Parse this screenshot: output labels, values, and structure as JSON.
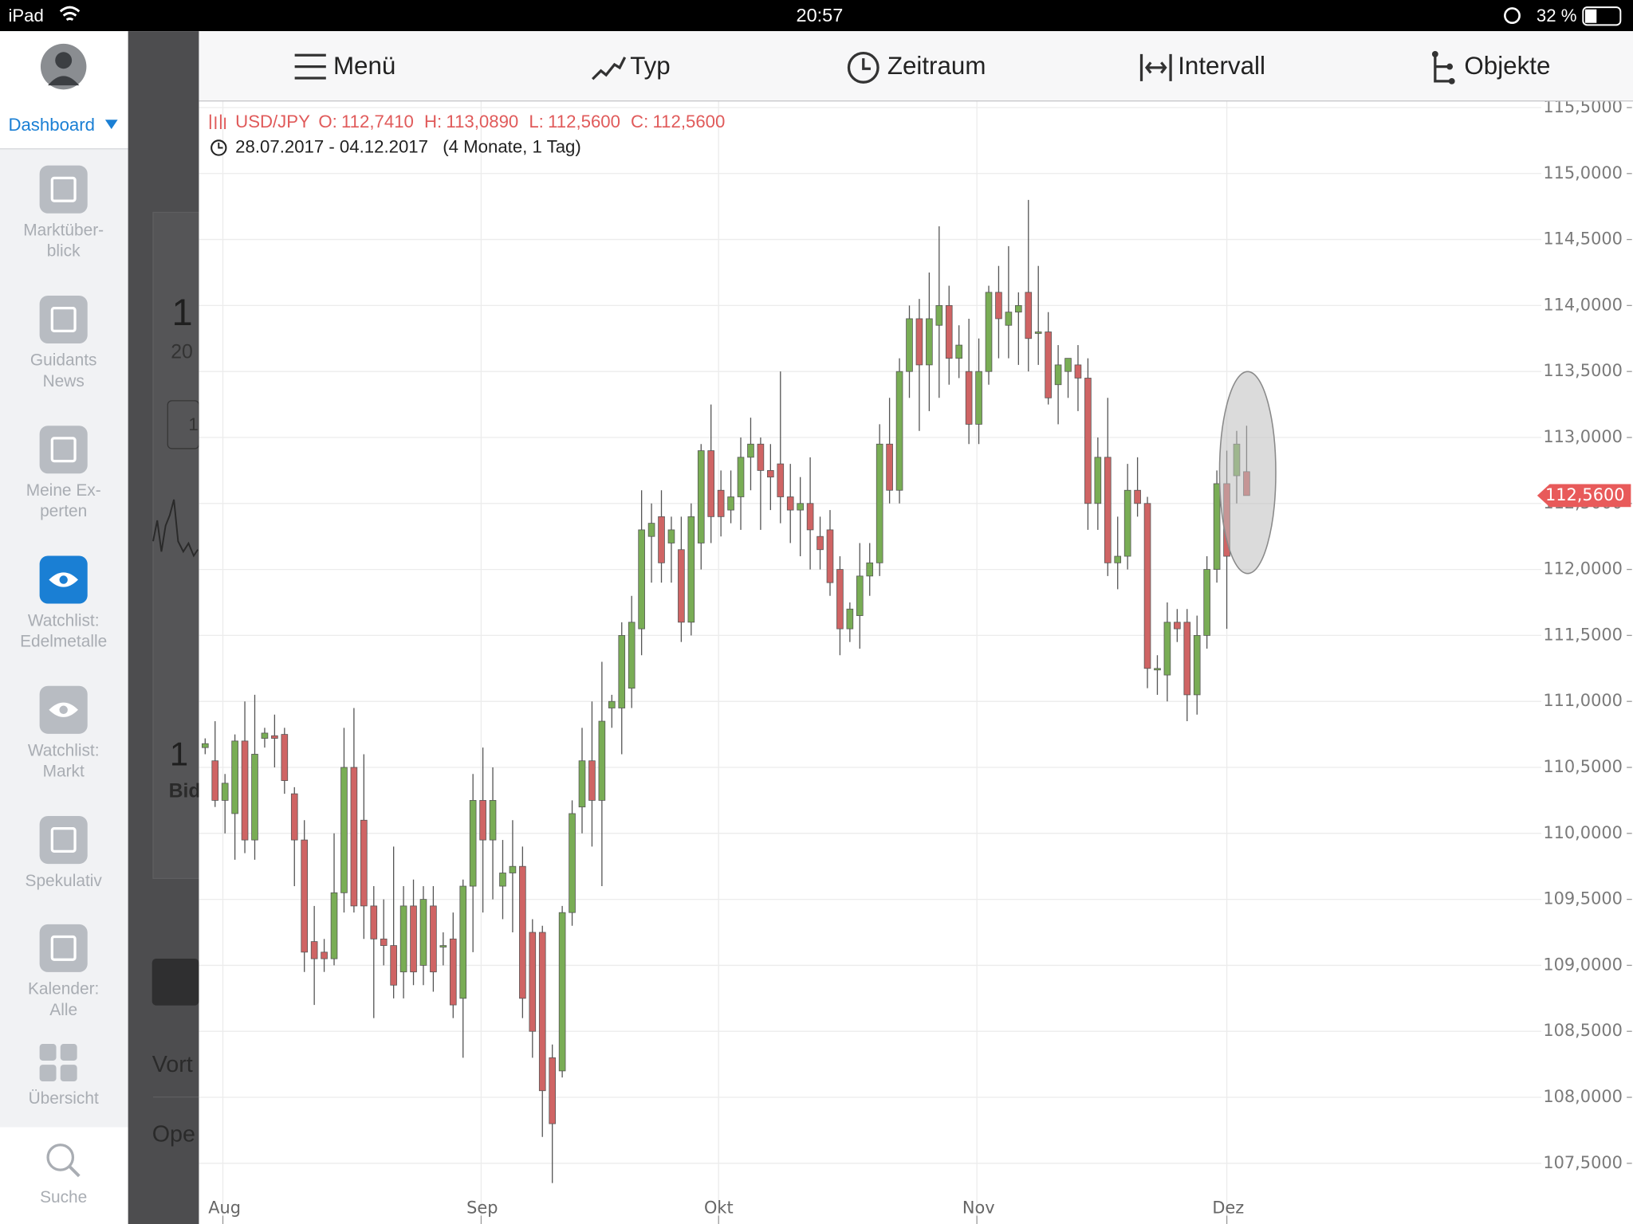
{
  "status_bar": {
    "device": "iPad",
    "time": "20:57",
    "battery": "32 %"
  },
  "sidebar": {
    "dashboard": "Dashboard",
    "items": [
      {
        "lines": [
          "Marktüber-",
          "blick"
        ]
      },
      {
        "lines": [
          "Guidants",
          "News"
        ]
      },
      {
        "lines": [
          "Meine Ex-",
          "perten"
        ]
      },
      {
        "lines": [
          "Watchlist:",
          "Edelmetalle"
        ],
        "active": true
      },
      {
        "lines": [
          "Watchlist:",
          "Markt"
        ]
      },
      {
        "lines": [
          "Spekulativ"
        ]
      },
      {
        "lines": [
          "Kalender:",
          "Alle"
        ]
      },
      {
        "lines": [
          "Übersicht"
        ]
      }
    ],
    "search": "Suche"
  },
  "background_panel": {
    "texts": [
      "1",
      "20",
      "1",
      "1",
      "Bid",
      "Vort",
      "Ope"
    ]
  },
  "toolbar": {
    "items": [
      "Menü",
      "Typ",
      "Zeitraum",
      "Intervall",
      "Objekte"
    ]
  },
  "chart": {
    "type": "candlestick",
    "symbol": "USD/JPY",
    "ohlc": [
      {
        "key": "O:",
        "value": "112,7410"
      },
      {
        "key": "H:",
        "value": "113,0890"
      },
      {
        "key": "L:",
        "value": "112,5600"
      },
      {
        "key": "C:",
        "value": "112,5600"
      }
    ],
    "date_range": "28.07.2017 - 04.12.2017",
    "duration": "(4 Monate, 1 Tag)",
    "ylim": [
      107.04,
      115.55
    ],
    "yticks": [
      {
        "value": 107.5,
        "label": "107,5000"
      },
      {
        "value": 108,
        "label": "108,0000"
      },
      {
        "value": 108.5,
        "label": "108,5000"
      },
      {
        "value": 109,
        "label": "109,0000"
      },
      {
        "value": 109.5,
        "label": "109,5000"
      },
      {
        "value": 110,
        "label": "110,0000"
      },
      {
        "value": 110.5,
        "label": "110,5000"
      },
      {
        "value": 111,
        "label": "111,0000"
      },
      {
        "value": 111.5,
        "label": "111,5000"
      },
      {
        "value": 112,
        "label": "112,0000"
      },
      {
        "value": 112.5,
        "label": "112,5000"
      },
      {
        "value": 113,
        "label": "113,0000"
      },
      {
        "value": 113.5,
        "label": "113,5000"
      },
      {
        "value": 114,
        "label": "114,0000"
      },
      {
        "value": 114.5,
        "label": "114,5000"
      },
      {
        "value": 115,
        "label": "115,0000"
      },
      {
        "value": 115.5,
        "label": "115,5000"
      }
    ],
    "last_price": {
      "value": 112.56,
      "label": "112,5600"
    },
    "xticks": [
      "Aug",
      "Sep",
      "Okt",
      "Nov",
      "Dez"
    ],
    "up_color": "#79ad55",
    "down_color": "#cf6464",
    "grid": true,
    "candles": [
      [
        110.65,
        110.72,
        110.6,
        110.68
      ],
      [
        110.55,
        110.85,
        110.2,
        110.25
      ],
      [
        110.25,
        110.45,
        110.0,
        110.38
      ],
      [
        110.15,
        110.75,
        109.8,
        110.7
      ],
      [
        110.7,
        111.0,
        109.85,
        109.95
      ],
      [
        109.95,
        111.05,
        109.8,
        110.6
      ],
      [
        110.72,
        110.8,
        110.65,
        110.76
      ],
      [
        110.74,
        110.9,
        110.5,
        110.72
      ],
      [
        110.75,
        110.8,
        110.3,
        110.4
      ],
      [
        110.3,
        110.35,
        109.6,
        109.95
      ],
      [
        109.95,
        110.1,
        108.95,
        109.1
      ],
      [
        109.18,
        109.45,
        108.7,
        109.05
      ],
      [
        109.1,
        109.2,
        108.95,
        109.05
      ],
      [
        109.05,
        110.0,
        109.0,
        109.55
      ],
      [
        109.55,
        110.8,
        109.4,
        110.5
      ],
      [
        110.5,
        110.95,
        109.4,
        109.45
      ],
      [
        110.1,
        110.6,
        109.2,
        109.45
      ],
      [
        109.45,
        109.6,
        108.6,
        109.2
      ],
      [
        109.2,
        109.5,
        109.0,
        109.15
      ],
      [
        109.15,
        109.9,
        108.75,
        108.85
      ],
      [
        108.95,
        109.6,
        108.75,
        109.45
      ],
      [
        109.45,
        109.65,
        108.85,
        108.95
      ],
      [
        109.0,
        109.6,
        108.85,
        109.5
      ],
      [
        109.45,
        109.6,
        108.8,
        108.95
      ],
      [
        109.15,
        109.25,
        109.0,
        109.15
      ],
      [
        109.2,
        109.4,
        108.6,
        108.7
      ],
      [
        108.75,
        109.65,
        108.3,
        109.6
      ],
      [
        109.6,
        110.45,
        109.1,
        110.25
      ],
      [
        110.25,
        110.65,
        109.4,
        109.95
      ],
      [
        109.95,
        110.5,
        109.5,
        110.25
      ],
      [
        109.6,
        109.95,
        109.35,
        109.7
      ],
      [
        109.7,
        110.1,
        109.25,
        109.75
      ],
      [
        109.75,
        109.9,
        108.6,
        108.75
      ],
      [
        109.25,
        109.35,
        108.3,
        108.5
      ],
      [
        109.25,
        109.3,
        107.7,
        108.05
      ],
      [
        108.3,
        108.4,
        107.35,
        107.8
      ],
      [
        108.2,
        109.45,
        108.15,
        109.4
      ],
      [
        109.4,
        110.25,
        109.3,
        110.15
      ],
      [
        110.2,
        110.8,
        110.0,
        110.55
      ],
      [
        110.55,
        111.0,
        109.9,
        110.25
      ],
      [
        110.25,
        111.3,
        109.6,
        110.85
      ],
      [
        110.95,
        111.05,
        110.8,
        111.0
      ],
      [
        110.95,
        111.6,
        110.6,
        111.5
      ],
      [
        111.1,
        111.8,
        110.95,
        111.6
      ],
      [
        111.55,
        112.6,
        111.35,
        112.3
      ],
      [
        112.25,
        112.5,
        111.9,
        112.35
      ],
      [
        112.4,
        112.6,
        111.9,
        112.05
      ],
      [
        112.2,
        112.4,
        111.9,
        112.3
      ],
      [
        112.15,
        112.4,
        111.45,
        111.6
      ],
      [
        111.6,
        112.5,
        111.5,
        112.4
      ],
      [
        112.2,
        112.95,
        112.0,
        112.9
      ],
      [
        112.9,
        113.25,
        112.2,
        112.4
      ],
      [
        112.6,
        112.75,
        112.25,
        112.4
      ],
      [
        112.45,
        112.75,
        112.35,
        112.55
      ],
      [
        112.55,
        113.0,
        112.3,
        112.85
      ],
      [
        112.85,
        113.15,
        112.6,
        112.95
      ],
      [
        112.95,
        113.0,
        112.3,
        112.75
      ],
      [
        112.75,
        112.95,
        112.45,
        112.7
      ],
      [
        112.8,
        113.5,
        112.35,
        112.55
      ],
      [
        112.55,
        112.8,
        112.2,
        112.45
      ],
      [
        112.45,
        112.7,
        112.1,
        112.5
      ],
      [
        112.5,
        112.85,
        112.0,
        112.3
      ],
      [
        112.25,
        112.4,
        112.0,
        112.15
      ],
      [
        112.3,
        112.45,
        111.8,
        111.9
      ],
      [
        112.0,
        112.1,
        111.35,
        111.55
      ],
      [
        111.55,
        111.75,
        111.45,
        111.7
      ],
      [
        111.65,
        112.2,
        111.4,
        111.95
      ],
      [
        111.95,
        112.2,
        111.8,
        112.05
      ],
      [
        112.05,
        113.1,
        111.95,
        112.95
      ],
      [
        112.95,
        113.3,
        112.5,
        112.6
      ],
      [
        112.6,
        113.6,
        112.5,
        113.5
      ],
      [
        113.5,
        114.0,
        113.3,
        113.9
      ],
      [
        113.9,
        114.05,
        113.05,
        113.55
      ],
      [
        113.55,
        114.25,
        113.2,
        113.9
      ],
      [
        113.85,
        114.6,
        113.3,
        114.0
      ],
      [
        114.0,
        114.15,
        113.4,
        113.6
      ],
      [
        113.6,
        113.85,
        113.45,
        113.7
      ],
      [
        113.5,
        113.9,
        112.95,
        113.1
      ],
      [
        113.1,
        113.75,
        112.95,
        113.5
      ],
      [
        113.5,
        114.15,
        113.4,
        114.1
      ],
      [
        114.1,
        114.3,
        113.6,
        113.9
      ],
      [
        113.85,
        114.45,
        113.6,
        113.95
      ],
      [
        113.95,
        114.1,
        113.55,
        114.0
      ],
      [
        114.1,
        114.8,
        113.5,
        113.75
      ],
      [
        113.8,
        114.3,
        113.55,
        113.8
      ],
      [
        113.8,
        113.95,
        113.25,
        113.3
      ],
      [
        113.4,
        113.7,
        113.1,
        113.55
      ],
      [
        113.5,
        113.6,
        113.3,
        113.6
      ],
      [
        113.55,
        113.7,
        113.2,
        113.45
      ],
      [
        113.45,
        113.6,
        112.3,
        112.5
      ],
      [
        112.5,
        113.0,
        112.3,
        112.85
      ],
      [
        112.85,
        113.3,
        111.95,
        112.05
      ],
      [
        112.05,
        112.4,
        111.85,
        112.1
      ],
      [
        112.1,
        112.8,
        112.0,
        112.6
      ],
      [
        112.6,
        112.85,
        112.4,
        112.5
      ],
      [
        112.5,
        112.55,
        111.1,
        111.25
      ],
      [
        111.25,
        111.35,
        111.05,
        111.25
      ],
      [
        111.2,
        111.75,
        111.0,
        111.6
      ],
      [
        111.6,
        111.7,
        111.45,
        111.55
      ],
      [
        111.6,
        111.7,
        110.85,
        111.05
      ],
      [
        111.05,
        111.65,
        110.9,
        111.5
      ],
      [
        111.5,
        112.1,
        111.4,
        112.0
      ],
      [
        112.0,
        112.75,
        111.9,
        112.65
      ],
      [
        112.65,
        112.9,
        111.55,
        112.1
      ],
      [
        112.71,
        113.05,
        112.5,
        112.95
      ],
      [
        112.741,
        113.089,
        112.56,
        112.56
      ]
    ]
  }
}
